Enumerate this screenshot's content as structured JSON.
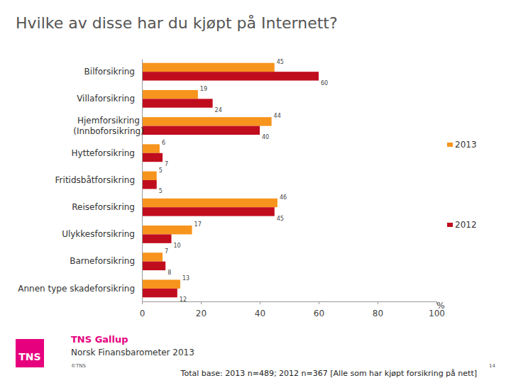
{
  "chart_data": {
    "type": "bar",
    "orientation": "horizontal",
    "title": "Hvilke av disse har du kjøpt på Internett?",
    "xlabel": "%",
    "categories": [
      "Bilforsikring",
      "Villaforsikring",
      "Hjemforsikring\n(Innboforsikring)",
      "Hytteforsikring",
      "Fritidsbåtforsikring",
      "Reiseforsikring",
      "Ulykkesforsikring",
      "Barneforsikring",
      "Annen type skadeforsikring"
    ],
    "series": [
      {
        "name": "2013",
        "color": "#f7941d",
        "values": [
          45,
          19,
          44,
          6,
          5,
          46,
          17,
          7,
          13
        ]
      },
      {
        "name": "2012",
        "color": "#c00d1e",
        "values": [
          60,
          24,
          40,
          7,
          5,
          45,
          10,
          8,
          12
        ]
      }
    ],
    "xlim": [
      0,
      100
    ],
    "xticks": [
      0,
      20,
      40,
      60,
      80,
      100
    ],
    "data_labels": true,
    "legend": "right",
    "grid": false,
    "logo": "TNS",
    "footer": {
      "brand": "TNS Gallup",
      "subtitle": "Norsk Finansbarometer 2013",
      "copyright": "©TNS",
      "page": "14",
      "note": "Total base: 2013 n=489; 2012 n=367 [Alle som har kjøpt forsikring på nett]"
    }
  }
}
